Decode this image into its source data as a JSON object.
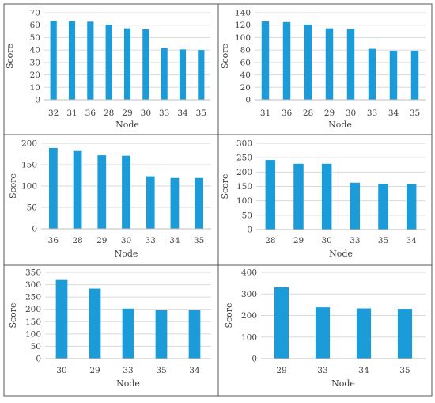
{
  "chart_data": [
    {
      "type": "bar",
      "categories": [
        "32",
        "31",
        "36",
        "28",
        "29",
        "30",
        "33",
        "34",
        "35"
      ],
      "values": [
        63.5,
        63.2,
        62.8,
        60.5,
        57.5,
        56.8,
        41.5,
        40.5,
        40.0
      ],
      "xlabel": "Node",
      "ylabel": "Score",
      "ylim": [
        0,
        70
      ],
      "yticks": [
        0,
        10,
        20,
        30,
        40,
        50,
        60,
        70
      ],
      "grid": true,
      "color": "#1b9bd7"
    },
    {
      "type": "bar",
      "categories": [
        "31",
        "36",
        "28",
        "29",
        "30",
        "33",
        "34",
        "35"
      ],
      "values": [
        126,
        125,
        121,
        115,
        114,
        82,
        79,
        79
      ],
      "xlabel": "Node",
      "ylabel": "Score",
      "ylim": [
        0,
        140
      ],
      "yticks": [
        0,
        20,
        40,
        60,
        80,
        100,
        120,
        140
      ],
      "grid": true,
      "color": "#1b9bd7"
    },
    {
      "type": "bar",
      "categories": [
        "36",
        "28",
        "29",
        "30",
        "33",
        "34",
        "35"
      ],
      "values": [
        189,
        182,
        172,
        171,
        123,
        119,
        119
      ],
      "xlabel": "Node",
      "ylabel": "Score",
      "ylim": [
        0,
        200
      ],
      "yticks": [
        0,
        50,
        100,
        150,
        200
      ],
      "grid": true,
      "color": "#1b9bd7"
    },
    {
      "type": "bar",
      "categories": [
        "28",
        "29",
        "30",
        "33",
        "35",
        "34"
      ],
      "values": [
        242,
        229,
        229,
        163,
        159,
        158
      ],
      "xlabel": "Node",
      "ylabel": "Score",
      "ylim": [
        0,
        300
      ],
      "yticks": [
        0,
        50,
        100,
        150,
        200,
        250,
        300
      ],
      "grid": true,
      "color": "#1b9bd7"
    },
    {
      "type": "bar",
      "categories": [
        "30",
        "29",
        "33",
        "35",
        "34"
      ],
      "values": [
        319,
        284,
        203,
        196,
        196
      ],
      "xlabel": "Node",
      "ylabel": "Score",
      "ylim": [
        0,
        350
      ],
      "yticks": [
        0,
        50,
        100,
        150,
        200,
        250,
        300,
        350
      ],
      "grid": true,
      "color": "#1b9bd7"
    },
    {
      "type": "bar",
      "categories": [
        "29",
        "33",
        "34",
        "35"
      ],
      "values": [
        331,
        238,
        233,
        231
      ],
      "xlabel": "Node",
      "ylabel": "Score",
      "ylim": [
        0,
        400
      ],
      "yticks": [
        0,
        100,
        200,
        300,
        400
      ],
      "grid": true,
      "color": "#1b9bd7"
    }
  ]
}
